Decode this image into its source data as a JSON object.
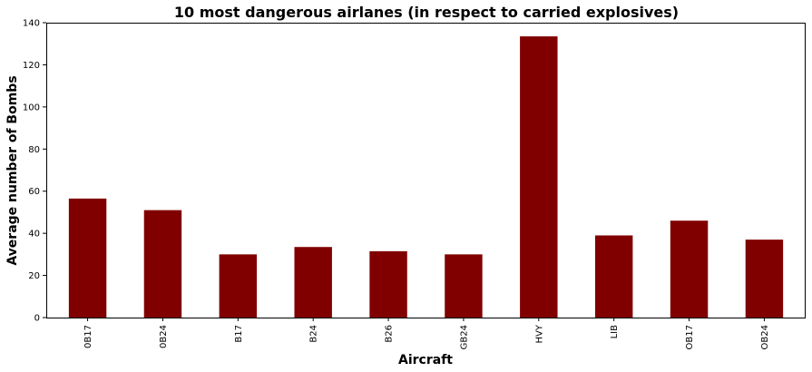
{
  "chart_data": {
    "type": "bar",
    "title": "10 most dangerous airlanes (in respect to carried explosives)",
    "xlabel": "Aircraft",
    "ylabel": "Average number of Bombs",
    "categories": [
      "0B17",
      "0B24",
      "B17",
      "B24",
      "B26",
      "GB24",
      "HVY",
      "LIB",
      "OB17",
      "OB24"
    ],
    "values": [
      56.5,
      51,
      30,
      33.5,
      31.5,
      30,
      133.5,
      39,
      46,
      37
    ],
    "ylim": [
      0,
      140
    ],
    "yticks": [
      0,
      20,
      40,
      60,
      80,
      100,
      120,
      140
    ],
    "bar_color": "#800000",
    "grid": false,
    "legend": "none"
  }
}
